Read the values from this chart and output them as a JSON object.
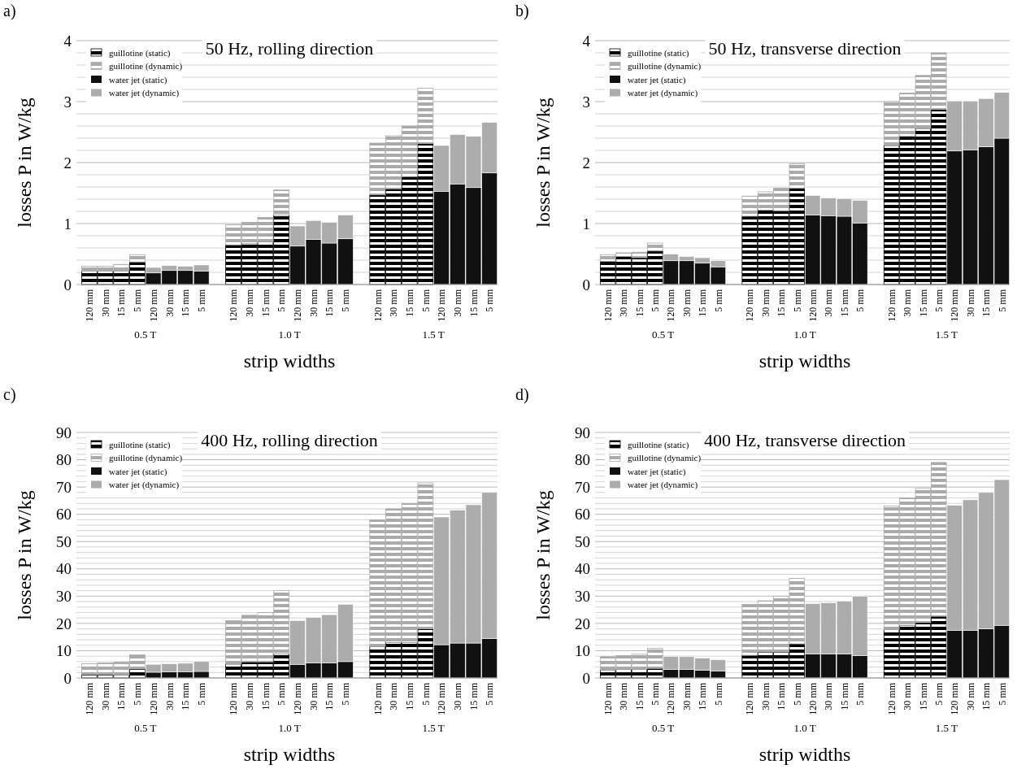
{
  "chart_data": [
    {
      "type": "bar",
      "stacked": true,
      "subtitle": "a)",
      "title": "50 Hz, rolling direction",
      "xlabel": "strip widths",
      "ylabel": "losses P in W/kg",
      "legend": "top left",
      "grid": "y",
      "annotations": [
        "0.5 T",
        "1.0 T",
        "1.5 T"
      ],
      "categories": [
        "120 mm",
        "30 mm",
        "15 mm",
        "5 mm",
        "120 mm",
        "30 mm",
        "15 mm",
        "5 mm",
        null,
        "120 mm",
        "30 mm",
        "15 mm",
        "5 mm",
        "120 mm",
        "30 mm",
        "15 mm",
        "5 mm",
        null,
        "120 mm",
        "30 mm",
        "15 mm",
        "5 mm",
        "120 mm",
        "30 mm",
        "15 mm",
        "5 mm"
      ],
      "ylim": [
        0,
        4
      ],
      "yticks": [
        0,
        {
          "value": 0.2,
          "label": null
        },
        {
          "value": 0.4,
          "label": null
        },
        {
          "value": 0.6,
          "label": null
        },
        {
          "value": 0.8,
          "label": null
        },
        1,
        {
          "value": 1.2,
          "label": null
        },
        {
          "value": 1.4,
          "label": null
        },
        {
          "value": 1.6,
          "label": null
        },
        {
          "value": 1.8,
          "label": null
        },
        2,
        {
          "value": 2.2,
          "label": null
        },
        {
          "value": 2.4,
          "label": null
        },
        {
          "value": 2.6,
          "label": null
        },
        {
          "value": 2.8,
          "label": null
        },
        3,
        {
          "value": 3.2,
          "label": null
        },
        {
          "value": 3.4,
          "label": null
        },
        {
          "value": 3.6,
          "label": null
        },
        {
          "value": 3.8,
          "label": null
        },
        4
      ],
      "series": [
        {
          "name": "guillotine (static)",
          "color": "#000000",
          "values": [
            0.22,
            0.22,
            0.22,
            0.37,
            null,
            null,
            null,
            null,
            null,
            0.65,
            0.67,
            0.7,
            1.14,
            null,
            null,
            null,
            null,
            null,
            1.47,
            1.57,
            1.77,
            2.31,
            null,
            null,
            null,
            null
          ]
        },
        {
          "name": "guillotine (dynamic)",
          "color": "#aaaaaa",
          "values": [
            0.08,
            0.08,
            0.11,
            0.12,
            null,
            null,
            null,
            null,
            null,
            0.33,
            0.35,
            0.4,
            0.41,
            null,
            null,
            null,
            null,
            null,
            0.85,
            0.87,
            0.83,
            0.91,
            null,
            null,
            null,
            null
          ]
        },
        {
          "name": "water jet (static)",
          "color": "#111111",
          "values": [
            null,
            null,
            null,
            null,
            0.19,
            0.23,
            0.23,
            0.22,
            null,
            null,
            null,
            null,
            null,
            0.63,
            0.74,
            0.68,
            0.75,
            null,
            null,
            null,
            null,
            null,
            1.53,
            1.65,
            1.59,
            1.83
          ]
        },
        {
          "name": "water jet (dynamic)",
          "color": "#acacac",
          "values": [
            null,
            null,
            null,
            null,
            0.09,
            0.08,
            0.07,
            0.1,
            null,
            null,
            null,
            null,
            null,
            0.33,
            0.31,
            0.34,
            0.39,
            null,
            null,
            null,
            null,
            null,
            0.75,
            0.81,
            0.84,
            0.83
          ]
        }
      ]
    },
    {
      "type": "bar",
      "stacked": true,
      "subtitle": "b)",
      "title": "50 Hz, transverse direction",
      "xlabel": "strip widths",
      "ylabel": "losses P in W/kg",
      "legend": "top left",
      "grid": "y",
      "annotations": [
        "0.5 T",
        "1.0 T",
        "1.5 T"
      ],
      "categories": [
        "120 mm",
        "30 mm",
        "15 mm",
        "5 mm",
        "120 mm",
        "30 mm",
        "15 mm",
        "5 mm",
        null,
        "120 mm",
        "30 mm",
        "15 mm",
        "5 mm",
        "120 mm",
        "30 mm",
        "15 mm",
        "5 mm",
        null,
        "120 mm",
        "30 mm",
        "15 mm",
        "5 mm",
        "120 mm",
        "30 mm",
        "15 mm",
        "5 mm"
      ],
      "ylim": [
        0,
        4
      ],
      "yticks": [
        0,
        {
          "value": 0.2,
          "label": null
        },
        {
          "value": 0.4,
          "label": null
        },
        {
          "value": 0.6,
          "label": null
        },
        {
          "value": 0.8,
          "label": null
        },
        1,
        {
          "value": 1.2,
          "label": null
        },
        {
          "value": 1.4,
          "label": null
        },
        {
          "value": 1.6,
          "label": null
        },
        {
          "value": 1.8,
          "label": null
        },
        2,
        {
          "value": 2.2,
          "label": null
        },
        {
          "value": 2.4,
          "label": null
        },
        {
          "value": 2.6,
          "label": null
        },
        {
          "value": 2.8,
          "label": null
        },
        3,
        {
          "value": 3.2,
          "label": null
        },
        {
          "value": 3.4,
          "label": null
        },
        {
          "value": 3.6,
          "label": null
        },
        {
          "value": 3.8,
          "label": null
        },
        4
      ],
      "series": [
        {
          "name": "guillotine (static)",
          "color": "#000000",
          "values": [
            0.38,
            0.46,
            0.44,
            0.55,
            null,
            null,
            null,
            null,
            null,
            1.12,
            1.22,
            1.21,
            1.58,
            null,
            null,
            null,
            null,
            null,
            2.28,
            2.43,
            2.56,
            2.87,
            null,
            null,
            null,
            null
          ]
        },
        {
          "name": "guillotine (dynamic)",
          "color": "#aaaaaa",
          "values": [
            0.11,
            0.06,
            0.09,
            0.13,
            null,
            null,
            null,
            null,
            null,
            0.33,
            0.3,
            0.37,
            0.4,
            null,
            null,
            null,
            null,
            null,
            0.72,
            0.71,
            0.87,
            0.93,
            null,
            null,
            null,
            null
          ]
        },
        {
          "name": "water jet (static)",
          "color": "#111111",
          "values": [
            null,
            null,
            null,
            null,
            0.39,
            0.39,
            0.35,
            0.29,
            null,
            null,
            null,
            null,
            null,
            1.14,
            1.13,
            1.12,
            1.01,
            null,
            null,
            null,
            null,
            null,
            2.19,
            2.21,
            2.26,
            2.4
          ]
        },
        {
          "name": "water jet (dynamic)",
          "color": "#acacac",
          "values": [
            null,
            null,
            null,
            null,
            0.11,
            0.07,
            0.09,
            0.1,
            null,
            null,
            null,
            null,
            null,
            0.32,
            0.29,
            0.29,
            0.37,
            null,
            null,
            null,
            null,
            null,
            0.82,
            0.8,
            0.79,
            0.75
          ]
        }
      ]
    },
    {
      "type": "bar",
      "stacked": true,
      "subtitle": "c)",
      "title": "400 Hz, rolling direction",
      "xlabel": "strip widths",
      "ylabel": "losses P in W/kg",
      "legend": "top left",
      "grid": "y",
      "annotations": [
        "0.5 T",
        "1.0 T",
        "1.5 T"
      ],
      "categories": [
        "120 mm",
        "30 mm",
        "15 mm",
        "5 mm",
        "120 mm",
        "30 mm",
        "15 mm",
        "5 mm",
        null,
        "120 mm",
        "30 mm",
        "15 mm",
        "5 mm",
        "120 mm",
        "30 mm",
        "15 mm",
        "5 mm",
        null,
        "120 mm",
        "30 mm",
        "15 mm",
        "5 mm",
        "120 mm",
        "30 mm",
        "15 mm",
        "5 mm"
      ],
      "ylim": [
        0,
        90
      ],
      "yticks": [
        0,
        {
          "value": 2,
          "label": null
        },
        {
          "value": 4,
          "label": null
        },
        {
          "value": 6,
          "label": null
        },
        {
          "value": 8,
          "label": null
        },
        10,
        {
          "value": 12,
          "label": null
        },
        {
          "value": 14,
          "label": null
        },
        {
          "value": 16,
          "label": null
        },
        {
          "value": 18,
          "label": null
        },
        20,
        {
          "value": 22,
          "label": null
        },
        {
          "value": 24,
          "label": null
        },
        {
          "value": 26,
          "label": null
        },
        {
          "value": 28,
          "label": null
        },
        30,
        {
          "value": 32,
          "label": null
        },
        {
          "value": 34,
          "label": null
        },
        {
          "value": 36,
          "label": null
        },
        {
          "value": 38,
          "label": null
        },
        40,
        {
          "value": 42,
          "label": null
        },
        {
          "value": 44,
          "label": null
        },
        {
          "value": 46,
          "label": null
        },
        {
          "value": 48,
          "label": null
        },
        50,
        {
          "value": 52,
          "label": null
        },
        {
          "value": 54,
          "label": null
        },
        {
          "value": 56,
          "label": null
        },
        {
          "value": 58,
          "label": null
        },
        60,
        {
          "value": 62,
          "label": null
        },
        {
          "value": 64,
          "label": null
        },
        {
          "value": 66,
          "label": null
        },
        {
          "value": 68,
          "label": null
        },
        70,
        {
          "value": 72,
          "label": null
        },
        {
          "value": 74,
          "label": null
        },
        {
          "value": 76,
          "label": null
        },
        {
          "value": 78,
          "label": null
        },
        80,
        {
          "value": 82,
          "label": null
        },
        {
          "value": 84,
          "label": null
        },
        {
          "value": 86,
          "label": null
        },
        {
          "value": 88,
          "label": null
        },
        90
      ],
      "series": [
        {
          "name": "guillotine (static)",
          "color": "#000000",
          "values": [
            1.2,
            1.2,
            1.1,
            3.3,
            null,
            null,
            null,
            null,
            null,
            5.1,
            5.9,
            5.9,
            8.8,
            null,
            null,
            null,
            null,
            null,
            11.5,
            13.0,
            13.0,
            18.0,
            null,
            null,
            null,
            null
          ]
        },
        {
          "name": "guillotine (dynamic)",
          "color": "#aaaaaa",
          "values": [
            4.0,
            4.3,
            4.7,
            5.2,
            null,
            null,
            null,
            null,
            null,
            15.9,
            17.1,
            18.1,
            23.2,
            null,
            null,
            null,
            null,
            null,
            46.5,
            49.0,
            51.0,
            53.5,
            null,
            null,
            null,
            null
          ]
        },
        {
          "name": "water jet (static)",
          "color": "#111111",
          "values": [
            null,
            null,
            null,
            null,
            2.1,
            2.2,
            2.3,
            2.4,
            null,
            null,
            null,
            null,
            null,
            5.0,
            5.5,
            5.5,
            6.0,
            null,
            null,
            null,
            null,
            null,
            12.2,
            12.8,
            12.8,
            14.5
          ]
        },
        {
          "name": "water jet (dynamic)",
          "color": "#acacac",
          "values": [
            null,
            null,
            null,
            null,
            2.9,
            3.0,
            3.1,
            3.6,
            null,
            null,
            null,
            null,
            null,
            16.0,
            16.7,
            17.7,
            21.0,
            null,
            null,
            null,
            null,
            null,
            46.8,
            48.7,
            50.7,
            53.5
          ]
        }
      ]
    },
    {
      "type": "bar",
      "stacked": true,
      "subtitle": "d)",
      "title": "400 Hz, transverse direction",
      "xlabel": "strip widths",
      "ylabel": "losses P in W/kg",
      "legend": "top left",
      "grid": "y",
      "annotations": [
        "0.5 T",
        "1.0 T",
        "1.5 T"
      ],
      "categories": [
        "120 mm",
        "30 mm",
        "15 mm",
        "5 mm",
        "120 mm",
        "30 mm",
        "15 mm",
        "5 mm",
        null,
        "120 mm",
        "30 mm",
        "15 mm",
        "5 mm",
        "120 mm",
        "30 mm",
        "15 mm",
        "5 mm",
        null,
        "120 mm",
        "30 mm",
        "15 mm",
        "5 mm",
        "120 mm",
        "30 mm",
        "15 mm",
        "5 mm"
      ],
      "ylim": [
        0,
        90
      ],
      "yticks": [
        0,
        {
          "value": 2,
          "label": null
        },
        {
          "value": 4,
          "label": null
        },
        {
          "value": 6,
          "label": null
        },
        {
          "value": 8,
          "label": null
        },
        10,
        {
          "value": 12,
          "label": null
        },
        {
          "value": 14,
          "label": null
        },
        {
          "value": 16,
          "label": null
        },
        {
          "value": 18,
          "label": null
        },
        20,
        {
          "value": 22,
          "label": null
        },
        {
          "value": 24,
          "label": null
        },
        {
          "value": 26,
          "label": null
        },
        {
          "value": 28,
          "label": null
        },
        30,
        {
          "value": 32,
          "label": null
        },
        {
          "value": 34,
          "label": null
        },
        {
          "value": 36,
          "label": null
        },
        {
          "value": 38,
          "label": null
        },
        40,
        {
          "value": 42,
          "label": null
        },
        {
          "value": 44,
          "label": null
        },
        {
          "value": 46,
          "label": null
        },
        {
          "value": 48,
          "label": null
        },
        50,
        {
          "value": 52,
          "label": null
        },
        {
          "value": 54,
          "label": null
        },
        {
          "value": 56,
          "label": null
        },
        {
          "value": 58,
          "label": null
        },
        60,
        {
          "value": 62,
          "label": null
        },
        {
          "value": 64,
          "label": null
        },
        {
          "value": 66,
          "label": null
        },
        {
          "value": 68,
          "label": null
        },
        70,
        {
          "value": 72,
          "label": null
        },
        {
          "value": 74,
          "label": null
        },
        {
          "value": 76,
          "label": null
        },
        {
          "value": 78,
          "label": null
        },
        80,
        {
          "value": 82,
          "label": null
        },
        {
          "value": 84,
          "label": null
        },
        {
          "value": 86,
          "label": null
        },
        {
          "value": 88,
          "label": null
        },
        90
      ],
      "series": [
        {
          "name": "guillotine (static)",
          "color": "#000000",
          "values": [
            2.9,
            3.1,
            3.1,
            3.5,
            null,
            null,
            null,
            null,
            null,
            8.3,
            9.5,
            9.5,
            12.5,
            null,
            null,
            null,
            null,
            null,
            17.7,
            19.3,
            20.3,
            22.6,
            null,
            null,
            null,
            null
          ]
        },
        {
          "name": "guillotine (dynamic)",
          "color": "#aaaaaa",
          "values": [
            4.9,
            5.1,
            5.6,
            7.4,
            null,
            null,
            null,
            null,
            null,
            18.7,
            18.8,
            20.5,
            24.0,
            null,
            null,
            null,
            null,
            null,
            45.3,
            46.7,
            49.2,
            56.4,
            null,
            null,
            null,
            null
          ]
        },
        {
          "name": "water jet (static)",
          "color": "#111111",
          "values": [
            null,
            null,
            null,
            null,
            3.1,
            3.1,
            2.8,
            2.6,
            null,
            null,
            null,
            null,
            null,
            8.8,
            8.8,
            8.8,
            8.2,
            null,
            null,
            null,
            null,
            null,
            17.5,
            17.5,
            18.0,
            19.3
          ]
        },
        {
          "name": "water jet (dynamic)",
          "color": "#acacac",
          "values": [
            null,
            null,
            null,
            null,
            4.8,
            4.7,
            4.5,
            4.1,
            null,
            null,
            null,
            null,
            null,
            18.5,
            18.7,
            19.4,
            21.8,
            null,
            null,
            null,
            null,
            null,
            45.8,
            47.8,
            50.0,
            53.4
          ]
        }
      ]
    }
  ]
}
